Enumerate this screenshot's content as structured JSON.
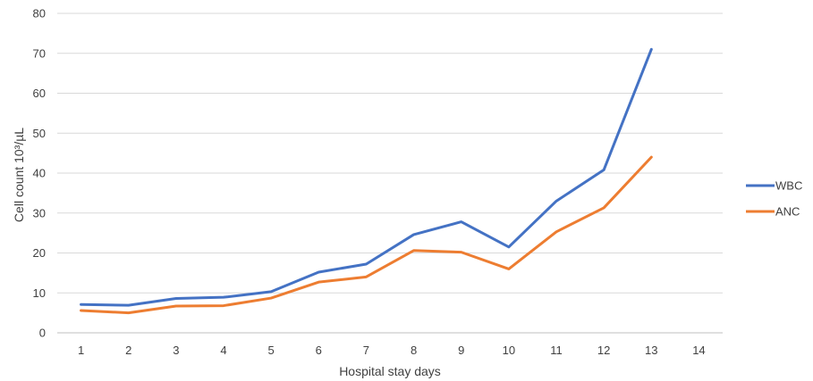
{
  "chart_data": {
    "type": "line",
    "title": "",
    "xlabel": "Hospital stay days",
    "ylabel": "Cell count 10³/µL",
    "categories": [
      "1",
      "2",
      "3",
      "4",
      "5",
      "6",
      "7",
      "8",
      "9",
      "10",
      "11",
      "12",
      "13",
      "14"
    ],
    "ylim": [
      0,
      80
    ],
    "yticks": [
      "0",
      "10",
      "20",
      "30",
      "40",
      "50",
      "60",
      "70",
      "80"
    ],
    "grid": "horizontal",
    "legend_position": "right",
    "series": [
      {
        "name": "WBC",
        "color": "#4472C4",
        "values": [
          7.1,
          6.9,
          8.6,
          8.9,
          10.3,
          15.2,
          17.2,
          24.6,
          27.8,
          21.5,
          33.0,
          40.8,
          71.0,
          null
        ]
      },
      {
        "name": "ANC",
        "color": "#ED7D31",
        "values": [
          5.6,
          5.0,
          6.7,
          6.8,
          8.7,
          12.7,
          14.0,
          20.6,
          20.2,
          16.0,
          25.3,
          31.3,
          44.0,
          null
        ]
      }
    ]
  }
}
